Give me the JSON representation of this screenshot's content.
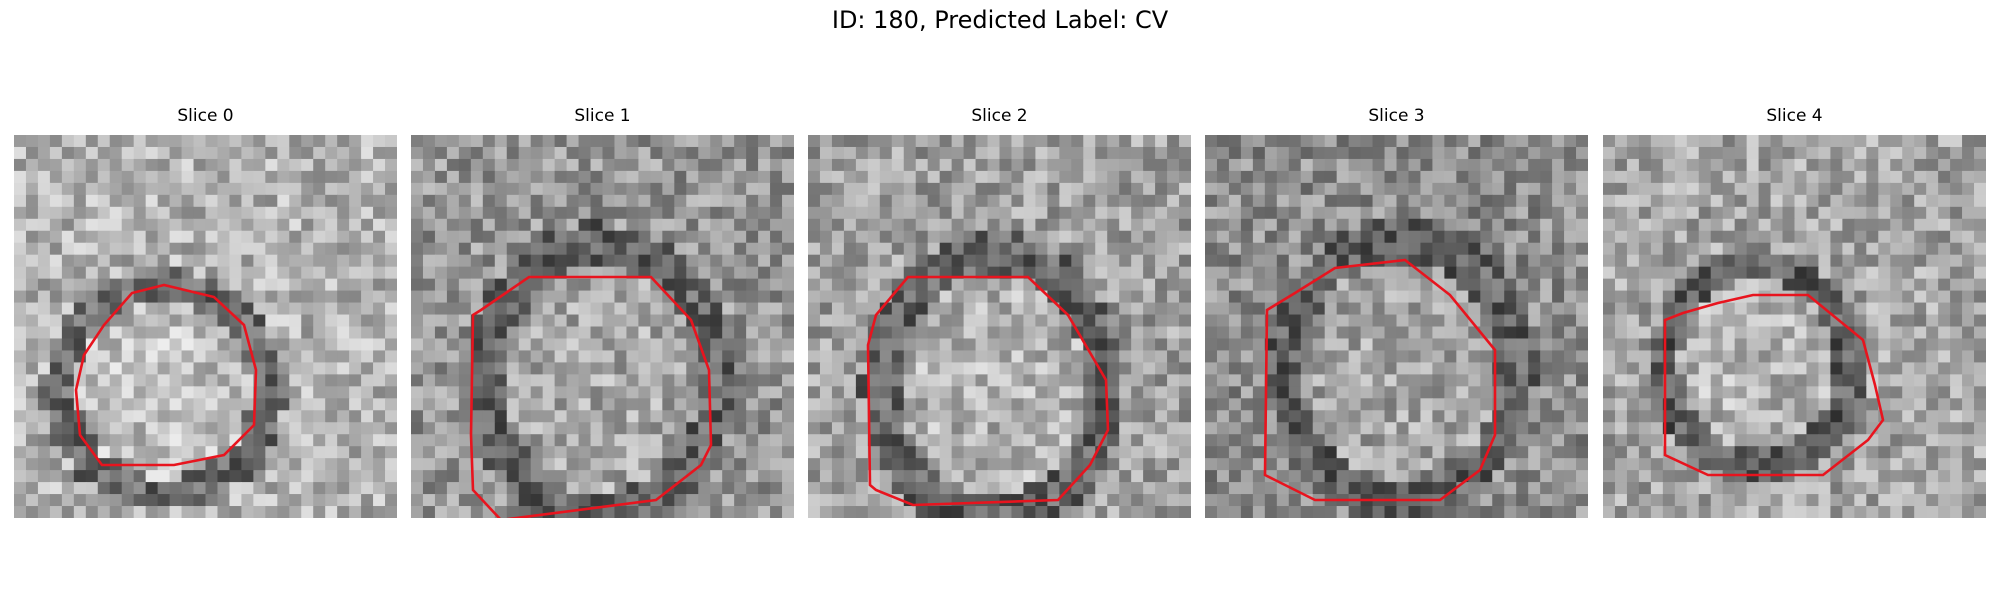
{
  "figure": {
    "title": "ID: 180, Predicted Label: CV"
  },
  "slices": [
    {
      "label": "Slice 0",
      "contour_color": "#e8141e"
    },
    {
      "label": "Slice 1",
      "contour_color": "#e8141e"
    },
    {
      "label": "Slice 2",
      "contour_color": "#e8141e"
    },
    {
      "label": "Slice 3",
      "contour_color": "#e8141e"
    },
    {
      "label": "Slice 4",
      "contour_color": "#e8141e"
    }
  ]
}
